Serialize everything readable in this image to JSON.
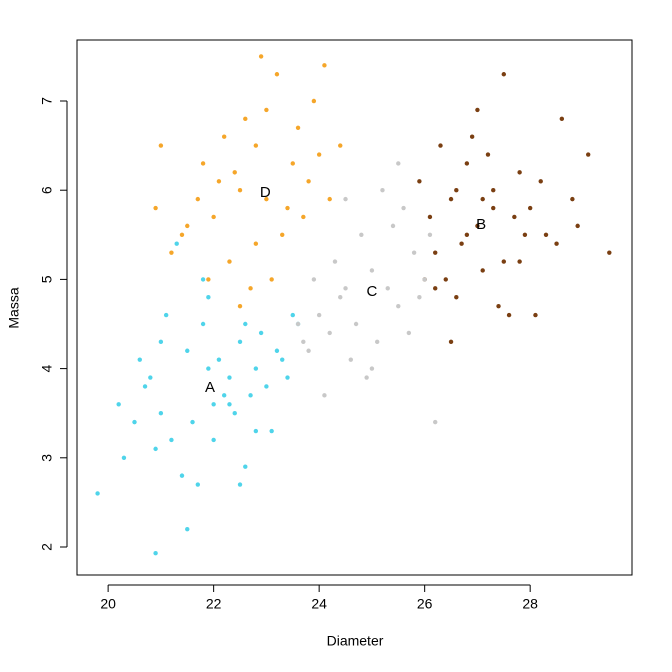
{
  "chart_data": {
    "type": "scatter",
    "xlabel": "Diameter",
    "ylabel": "Massa",
    "xlim": [
      19.41,
      29.93
    ],
    "ylim": [
      1.686,
      7.684
    ],
    "xticks": [
      20,
      22,
      24,
      26,
      28
    ],
    "yticks": [
      2,
      3,
      4,
      5,
      6,
      7
    ],
    "series": [
      {
        "color": "#4fd4ea",
        "x": [
          21.0,
          21.5,
          22.3,
          22.8,
          21.8,
          22.5,
          23.0,
          20.8,
          21.2,
          22.0,
          22.6,
          23.3,
          21.6,
          20.5,
          21.9,
          22.2,
          22.9,
          23.5,
          20.2,
          21.4,
          22.4,
          21.1,
          22.7,
          20.9,
          23.1,
          21.7,
          22.1,
          20.6,
          19.8,
          20.9,
          21.5,
          21.8,
          22.5,
          23.6,
          20.3,
          21.3,
          22.8,
          22.0,
          23.2,
          21.0,
          22.3,
          20.7,
          23.4,
          21.9,
          22.6
        ],
        "y": [
          3.5,
          4.2,
          3.9,
          3.3,
          4.5,
          4.3,
          3.8,
          3.9,
          3.2,
          3.6,
          2.9,
          4.1,
          3.4,
          3.4,
          4.8,
          3.7,
          4.4,
          4.6,
          3.6,
          2.8,
          3.5,
          4.6,
          3.7,
          3.1,
          3.3,
          2.7,
          4.1,
          4.1,
          2.6,
          1.93,
          2.2,
          5.0,
          2.7,
          4.5,
          3.0,
          5.4,
          4.0,
          3.2,
          4.2,
          4.3,
          3.6,
          3.8,
          3.9,
          4.0,
          4.5
        ]
      },
      {
        "color": "#7a3f12",
        "x": [
          26.2,
          26.5,
          27.0,
          27.5,
          28.0,
          26.8,
          27.3,
          26.1,
          28.5,
          27.8,
          26.6,
          27.1,
          25.9,
          28.2,
          27.6,
          26.4,
          27.9,
          26.9,
          28.8,
          26.3,
          27.4,
          26.7,
          27.2,
          28.3,
          26.0,
          29.1,
          27.7,
          26.5,
          28.1,
          27.0,
          29.5,
          27.5,
          26.6,
          28.6,
          27.3,
          26.2,
          27.8,
          28.9,
          26.8,
          27.1
        ],
        "y": [
          5.3,
          5.9,
          5.6,
          5.2,
          5.8,
          6.3,
          6.0,
          5.7,
          5.4,
          6.2,
          4.8,
          5.1,
          6.1,
          6.1,
          4.6,
          5.0,
          5.5,
          6.6,
          5.9,
          6.5,
          4.7,
          5.4,
          6.4,
          5.5,
          5.0,
          6.4,
          5.7,
          4.3,
          4.6,
          6.9,
          5.3,
          7.3,
          6.0,
          6.8,
          5.8,
          4.9,
          5.2,
          5.6,
          5.5,
          5.9
        ]
      },
      {
        "color": "#c8c8c8",
        "x": [
          24.5,
          25.0,
          25.5,
          24.2,
          24.8,
          25.3,
          25.8,
          24.0,
          24.6,
          25.1,
          25.6,
          23.8,
          24.3,
          25.9,
          24.9,
          25.4,
          26.0,
          23.6,
          24.4,
          25.2,
          24.7,
          25.7,
          23.9,
          24.1,
          26.1,
          25.0,
          24.5,
          25.5,
          23.7,
          26.2
        ],
        "y": [
          4.9,
          5.1,
          4.7,
          4.4,
          5.5,
          4.9,
          5.3,
          4.6,
          4.1,
          4.3,
          5.8,
          4.2,
          5.2,
          4.8,
          3.9,
          5.6,
          5.0,
          4.5,
          4.8,
          6.0,
          4.5,
          4.4,
          5.0,
          3.7,
          5.5,
          4.0,
          5.9,
          6.3,
          4.3,
          3.4
        ]
      },
      {
        "color": "#f5a62a",
        "x": [
          22.5,
          23.0,
          23.5,
          22.0,
          22.8,
          23.3,
          21.8,
          22.3,
          23.8,
          24.2,
          21.5,
          22.6,
          23.1,
          22.1,
          23.6,
          21.2,
          22.9,
          24.0,
          21.0,
          22.4,
          23.4,
          21.7,
          24.4,
          22.7,
          23.2,
          21.4,
          22.2,
          23.9,
          20.9,
          22.8,
          23.7,
          24.1,
          22.5,
          23.0,
          21.9
        ],
        "y": [
          6.0,
          5.9,
          6.3,
          5.7,
          6.5,
          5.5,
          6.3,
          5.2,
          6.1,
          5.9,
          5.6,
          6.8,
          5.0,
          6.1,
          6.7,
          5.3,
          7.5,
          6.4,
          6.5,
          6.2,
          5.8,
          5.9,
          6.5,
          4.9,
          7.3,
          5.5,
          6.6,
          7.0,
          5.8,
          5.4,
          5.7,
          7.4,
          4.7,
          6.9,
          5.0
        ]
      }
    ],
    "annotations": [
      {
        "text": "A",
        "x": 21.93,
        "y": 3.78
      },
      {
        "text": "B",
        "x": 27.07,
        "y": 5.61
      },
      {
        "text": "C",
        "x": 25.0,
        "y": 4.86
      },
      {
        "text": "D",
        "x": 22.98,
        "y": 5.97
      }
    ]
  }
}
